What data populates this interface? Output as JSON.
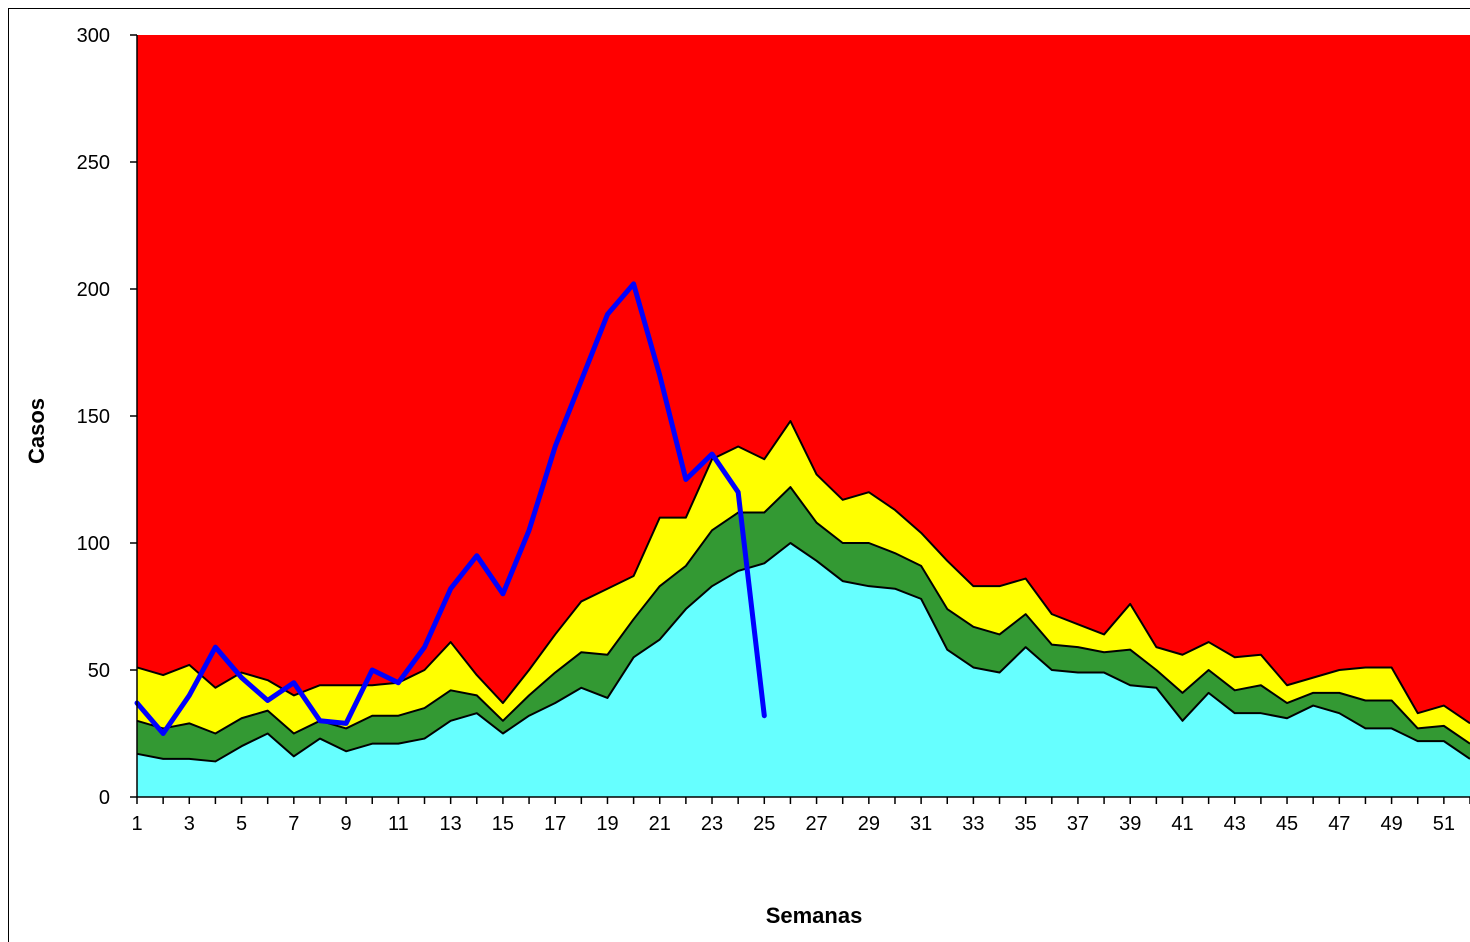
{
  "chart_data": {
    "type": "area",
    "xlabel": "Semanas",
    "ylabel": "Casos",
    "xlim": [
      1,
      52
    ],
    "ylim": [
      0,
      300
    ],
    "yticks": [
      0,
      50,
      100,
      150,
      200,
      250,
      300
    ],
    "xticks": [
      1,
      3,
      5,
      7,
      9,
      11,
      13,
      15,
      17,
      19,
      21,
      23,
      25,
      27,
      29,
      31,
      33,
      35,
      37,
      39,
      41,
      43,
      45,
      47,
      49,
      51
    ],
    "grid": false,
    "legend": "none",
    "x": [
      1,
      2,
      3,
      4,
      5,
      6,
      7,
      8,
      9,
      10,
      11,
      12,
      13,
      14,
      15,
      16,
      17,
      18,
      19,
      20,
      21,
      22,
      23,
      24,
      25,
      26,
      27,
      28,
      29,
      30,
      31,
      32,
      33,
      34,
      35,
      36,
      37,
      38,
      39,
      40,
      41,
      42,
      43,
      44,
      45,
      46,
      47,
      48,
      49,
      50,
      51,
      52
    ],
    "bands": [
      {
        "color": "#66FFFF",
        "values": [
          17,
          15,
          15,
          14,
          20,
          25,
          16,
          23,
          18,
          21,
          21,
          23,
          30,
          33,
          25,
          32,
          37,
          43,
          39,
          55,
          62,
          74,
          83,
          89,
          92,
          100,
          93,
          85,
          83,
          82,
          78,
          58,
          51,
          49,
          59,
          50,
          49,
          49,
          44,
          43,
          30,
          41,
          33,
          33,
          31,
          36,
          33,
          27,
          27,
          22,
          22,
          15
        ]
      },
      {
        "color": "#339933",
        "values": [
          30,
          27,
          29,
          25,
          31,
          34,
          25,
          30,
          27,
          32,
          32,
          35,
          42,
          40,
          30,
          40,
          49,
          57,
          56,
          70,
          83,
          91,
          105,
          112,
          112,
          122,
          108,
          100,
          100,
          96,
          91,
          74,
          67,
          64,
          72,
          60,
          59,
          57,
          58,
          50,
          41,
          50,
          42,
          44,
          37,
          41,
          41,
          38,
          38,
          27,
          28,
          21
        ]
      },
      {
        "color": "#FFFF00",
        "values": [
          51,
          48,
          52,
          43,
          49,
          46,
          40,
          44,
          44,
          44,
          45,
          50,
          61,
          48,
          37,
          50,
          64,
          77,
          82,
          87,
          110,
          110,
          133,
          138,
          133,
          148,
          127,
          117,
          120,
          113,
          104,
          93,
          83,
          83,
          86,
          72,
          68,
          64,
          76,
          59,
          56,
          61,
          55,
          56,
          44,
          47,
          50,
          51,
          51,
          33,
          36,
          29
        ]
      },
      {
        "color": "#FF0000",
        "values": [
          300,
          300,
          300,
          300,
          300,
          300,
          300,
          300,
          300,
          300,
          300,
          300,
          300,
          300,
          300,
          300,
          300,
          300,
          300,
          300,
          300,
          300,
          300,
          300,
          300,
          300,
          300,
          300,
          300,
          300,
          300,
          300,
          300,
          300,
          300,
          300,
          300,
          300,
          300,
          300,
          300,
          300,
          300,
          300,
          300,
          300,
          300,
          300,
          300,
          300,
          300,
          300
        ]
      }
    ],
    "series": [
      {
        "color": "#0000FF",
        "x": [
          1,
          2,
          3,
          4,
          5,
          6,
          7,
          8,
          9,
          10,
          11,
          12,
          13,
          14,
          15,
          16,
          17,
          18,
          19,
          20,
          21,
          22,
          23,
          24,
          25
        ],
        "values": [
          37,
          25,
          40,
          59,
          47,
          38,
          45,
          30,
          29,
          50,
          45,
          59,
          82,
          95,
          80,
          105,
          138,
          164,
          190,
          202,
          166,
          125,
          135,
          120,
          32
        ]
      }
    ]
  }
}
